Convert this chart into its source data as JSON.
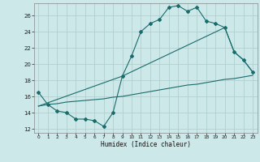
{
  "title": "",
  "xlabel": "Humidex (Indice chaleur)",
  "bg_color": "#cde8e8",
  "grid_color": "#b0d0d0",
  "line_color": "#1a6b6b",
  "xlim": [
    -0.5,
    23.5
  ],
  "ylim": [
    11.5,
    27.5
  ],
  "yticks": [
    12,
    14,
    16,
    18,
    20,
    22,
    24,
    26
  ],
  "xticks": [
    0,
    1,
    2,
    3,
    4,
    5,
    6,
    7,
    8,
    9,
    10,
    11,
    12,
    13,
    14,
    15,
    16,
    17,
    18,
    19,
    20,
    21,
    22,
    23
  ],
  "line1_x": [
    0,
    1,
    2,
    3,
    4,
    5,
    6,
    7,
    8,
    9,
    10,
    11,
    12,
    13,
    14,
    15,
    16,
    17,
    18,
    19,
    20,
    21,
    22,
    23
  ],
  "line1_y": [
    16.5,
    15.0,
    14.2,
    14.0,
    13.2,
    13.2,
    13.0,
    12.3,
    14.0,
    18.5,
    21.0,
    24.0,
    25.0,
    25.5,
    27.0,
    27.2,
    26.5,
    27.0,
    25.3,
    25.0,
    24.5,
    21.5,
    20.5,
    19.0
  ],
  "line2_x": [
    0,
    1,
    2,
    3,
    4,
    5,
    6,
    7,
    8,
    9,
    10,
    11,
    12,
    13,
    14,
    15,
    16,
    17,
    18,
    19,
    20,
    21,
    22,
    23
  ],
  "line2_y": [
    14.8,
    15.0,
    15.1,
    15.3,
    15.4,
    15.5,
    15.6,
    15.7,
    15.9,
    16.0,
    16.2,
    16.4,
    16.6,
    16.8,
    17.0,
    17.2,
    17.4,
    17.5,
    17.7,
    17.9,
    18.1,
    18.2,
    18.4,
    18.6
  ],
  "line3_x": [
    0,
    9,
    20,
    21,
    22,
    23
  ],
  "line3_y": [
    14.8,
    18.5,
    24.5,
    21.5,
    20.5,
    19.0
  ]
}
